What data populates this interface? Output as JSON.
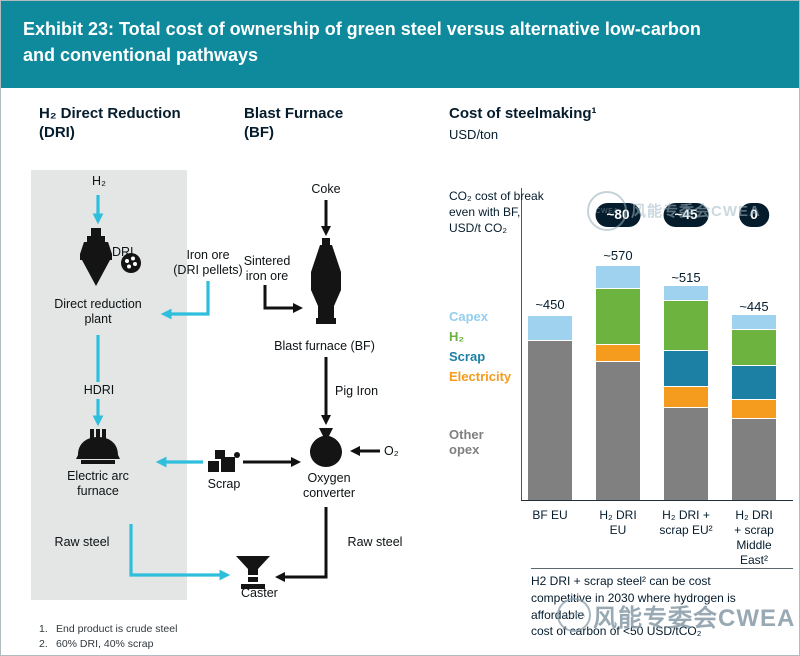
{
  "header": {
    "title_line1": "Exhibit 23: Total cost of ownership of green steel versus alternative low-carbon",
    "title_line2": "and conventional pathways"
  },
  "diagram": {
    "dri": {
      "heading": "H₂ Direct Reduction (DRI)",
      "h2_label": "H₂",
      "dri_label": "DRI",
      "iron_ore_label": "Iron ore\n(DRI pellets)",
      "plant_label": "Direct reduction plant",
      "hdri_label": "HDRI",
      "eaf_label": "Electric arc furnace",
      "raw_steel_label": "Raw steel"
    },
    "bf": {
      "heading": "Blast Furnace (BF)",
      "coke_label": "Coke",
      "sintered_label": "Sintered\niron ore",
      "furnace_label": "Blast furnace (BF)",
      "pig_iron_label": "Pig Iron",
      "o2_label": "O₂",
      "scrap_label": "Scrap",
      "converter_label": "Oxygen\nconverter",
      "raw_steel_label": "Raw steel",
      "caster_label": "Caster"
    }
  },
  "chart": {
    "heading": "Cost of steelmaking¹",
    "unit": "USD/ton",
    "co2_note": "CO₂ cost of break\neven with BF,\nUSD/t CO₂",
    "legend": [
      {
        "label": "Capex",
        "color": "#93cfee"
      },
      {
        "label": "H₂",
        "color": "#6db33f"
      },
      {
        "label": "Scrap",
        "color": "#1c7fa4"
      },
      {
        "label": "Electricity",
        "color": "#f59b1e"
      },
      {
        "label": "Other opex",
        "color": "#808080"
      }
    ],
    "footnote_lines": [
      "H2 DRI + scrap steel² can be cost",
      "competitive in 2030 where hydrogen is",
      "affordable",
      "cost of carbon of <50 USD/tCO₂"
    ]
  },
  "chart_data": {
    "type": "bar",
    "stacked": true,
    "title": "Cost of steelmaking",
    "ylabel": "USD/ton",
    "categories": [
      "BF EU",
      "H₂ DRI EU",
      "H₂ DRI + scrap EU²",
      "H₂ DRI + scrap Middle East²"
    ],
    "tick_labels": [
      "BF EU",
      "H₂ DRI\nEU",
      "H₂ DRI +\nscrap EU²",
      "H₂ DRI\n+ scrap\nMiddle\nEast²"
    ],
    "totals": [
      450,
      570,
      515,
      445
    ],
    "total_labels": [
      "~450",
      "~570",
      "~515",
      "~445"
    ],
    "co2_breakeven_labels": [
      "",
      "~80",
      "~45",
      "0"
    ],
    "series": [
      {
        "name": "Other opex",
        "color": "#808080",
        "values": [
          390,
          340,
          225,
          200
        ]
      },
      {
        "name": "Electricity",
        "color": "#f59b1e",
        "values": [
          0,
          40,
          50,
          45
        ]
      },
      {
        "name": "Scrap",
        "color": "#1c7fa4",
        "values": [
          0,
          0,
          85,
          80
        ]
      },
      {
        "name": "H₂",
        "color": "#6db33f",
        "values": [
          0,
          135,
          120,
          85
        ]
      },
      {
        "name": "Capex",
        "color": "#9ed2ef",
        "values": [
          60,
          55,
          35,
          35
        ]
      }
    ]
  },
  "footnotes": [
    {
      "num": "1.",
      "text": "End product is crude steel"
    },
    {
      "num": "2.",
      "text": "60% DRI, 40% scrap"
    }
  ],
  "watermark": {
    "text": "风能专委会CWEA",
    "logo": "CWEA"
  }
}
